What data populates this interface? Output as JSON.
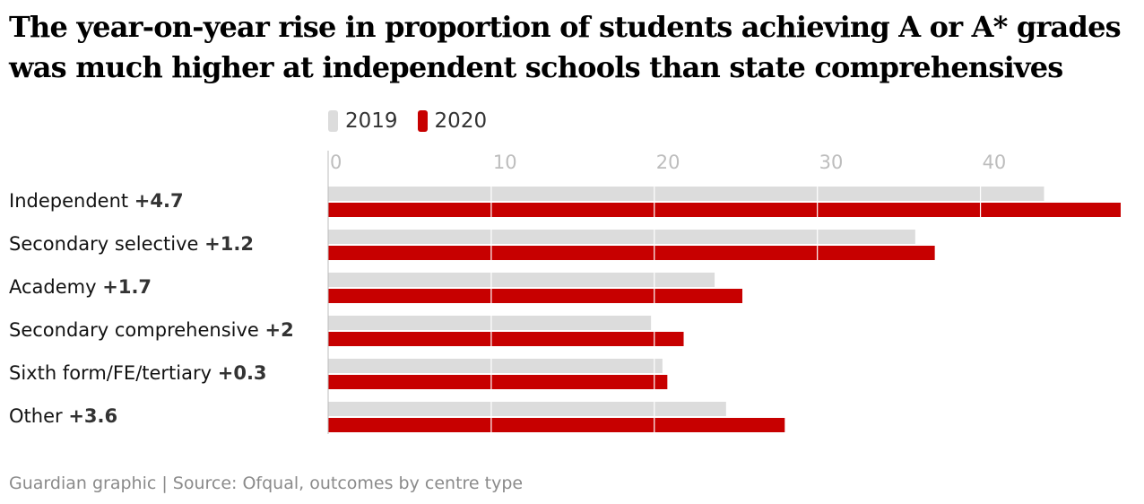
{
  "title": "The year-on-year rise in proportion of students achieving A or A* grades was much higher at independent schools than state comprehensives",
  "source": "Guardian graphic | Source: Ofqual, outcomes by centre type",
  "colors": {
    "series_2019": "#dcdcdc",
    "series_2020": "#c70000",
    "grid": "#ffffff",
    "tick": "#bdbdbd"
  },
  "chart_data": {
    "type": "bar",
    "orientation": "horizontal",
    "title": "The year-on-year rise in proportion of students achieving A or A* grades was much higher at independent schools than state comprehensives",
    "legend_position": "top",
    "grid": true,
    "xlim": [
      0,
      48.6
    ],
    "xticks": [
      0,
      10,
      20,
      30,
      40
    ],
    "categories": [
      "Independent",
      "Secondary selective",
      "Academy",
      "Secondary comprehensive",
      "Sixth form/FE/tertiary",
      "Other"
    ],
    "changes": [
      "+4.7",
      "+1.2",
      "+1.7",
      "+2",
      "+0.3",
      "+3.6"
    ],
    "series": [
      {
        "name": "2019",
        "values": [
          43.9,
          36.0,
          23.7,
          19.8,
          20.5,
          24.4
        ]
      },
      {
        "name": "2020",
        "values": [
          48.6,
          37.2,
          25.4,
          21.8,
          20.8,
          28.0
        ]
      }
    ]
  }
}
